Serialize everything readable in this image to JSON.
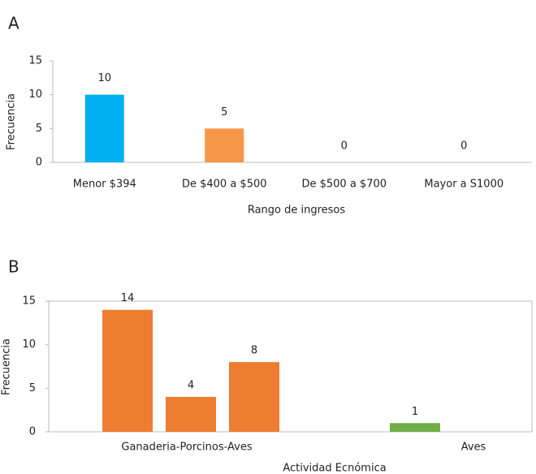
{
  "chart_data": [
    {
      "type": "bar",
      "panel": "A",
      "categories": [
        "Menor $394",
        "De $400 a $500",
        "De $500 a $700",
        "Mayor a S1000"
      ],
      "values": [
        10,
        5,
        0,
        0
      ],
      "colors": [
        "#00b0f0",
        "#f79646",
        "#f79646",
        "#f79646"
      ],
      "ylabel": "Frecuencia",
      "xlabel": "Rango de ingresos",
      "ylim": [
        0,
        15
      ],
      "yticks": [
        0,
        5,
        10,
        15
      ]
    },
    {
      "type": "grouped_bar",
      "panel": "B",
      "groups": [
        {
          "label": "Ganaderia-Porcinos-Aves",
          "color": "#ed7d31",
          "values": [
            14,
            4,
            8
          ]
        },
        {
          "label": "Aves",
          "color": "#70ad47",
          "values": [
            1
          ]
        }
      ],
      "ylabel": "Frecuencia",
      "xlabel": "Actividad Ecnómica",
      "ylim": [
        0,
        15
      ],
      "yticks": [
        0,
        5,
        10,
        15
      ]
    }
  ]
}
